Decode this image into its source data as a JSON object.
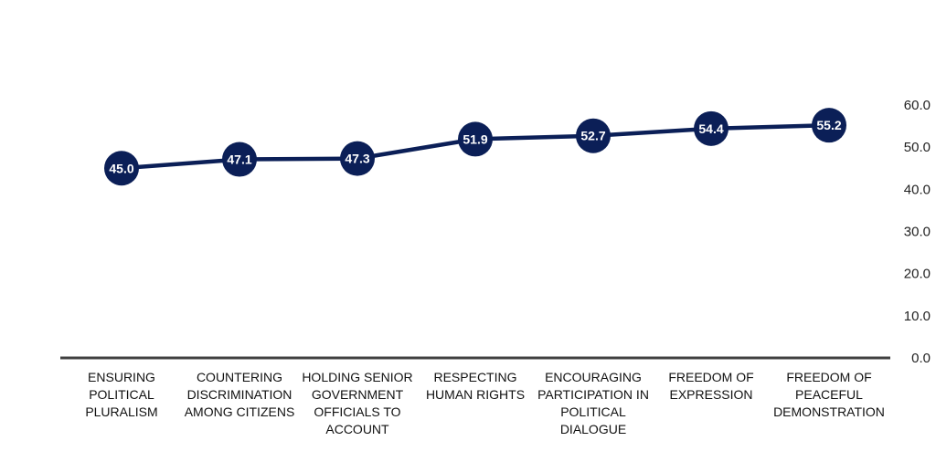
{
  "chart_data": {
    "type": "line",
    "categories": [
      [
        "ENSURING",
        "POLITICAL",
        "PLURALISM"
      ],
      [
        "COUNTERING",
        "DISCRIMINATION",
        "AMONG CITIZENS"
      ],
      [
        "HOLDING SENIOR",
        "GOVERNMENT",
        "OFFICIALS TO",
        "ACCOUNT"
      ],
      [
        "RESPECTING",
        "HUMAN RIGHTS"
      ],
      [
        "ENCOURAGING",
        "PARTICIPATION IN",
        "POLITICAL",
        "DIALOGUE"
      ],
      [
        "FREEDOM OF",
        "EXPRESSION"
      ],
      [
        "FREEDOM OF",
        "PEACEFUL",
        "DEMONSTRATION"
      ]
    ],
    "values": [
      45.0,
      47.1,
      47.3,
      51.9,
      52.7,
      54.4,
      55.2
    ],
    "value_labels": [
      "45.0",
      "47.1",
      "47.3",
      "51.9",
      "52.7",
      "54.4",
      "55.2"
    ],
    "yticks": [
      "0.0",
      "10.0",
      "20.0",
      "30.0",
      "40.0",
      "50.0",
      "60.0"
    ],
    "ylim": [
      0,
      60
    ],
    "y_axis_side": "right",
    "grid": false,
    "line_color": "#0b1f57",
    "marker_color": "#0b1f57",
    "axis_color": "#404040"
  }
}
